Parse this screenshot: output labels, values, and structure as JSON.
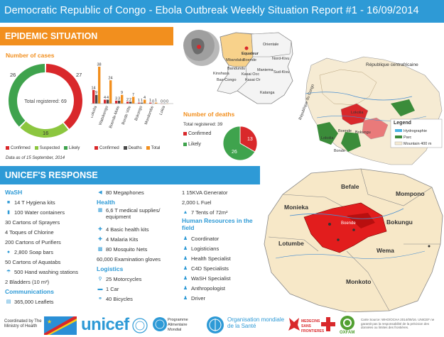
{
  "header": {
    "title": "Democratic Republic of Congo - Ebola Outbreak Weekly Situation Report #1 - 16/09/2014"
  },
  "epi": {
    "band": "EPIDEMIC SITUATION",
    "cases_title": "Number of cases",
    "donut_total": "Total registered: 69",
    "donut_labels": {
      "confirmed": "27",
      "suspected": "16",
      "likely": "26"
    },
    "data_note": "Data as of 15 September, 2014",
    "deaths_title": "Number of deaths",
    "deaths_total": "Total registered: 39",
    "deaths_legend": [
      "Confirmed",
      "Likely"
    ],
    "deaths_labels": {
      "confirmed": "13",
      "likely": "26"
    }
  },
  "chart_data": [
    {
      "type": "pie",
      "title": "Number of cases",
      "categories": [
        "Confirmed",
        "Suspected",
        "Likely"
      ],
      "values": [
        27,
        16,
        26
      ],
      "legend": "bottom",
      "colors": [
        "#d9282b",
        "#8cc63f",
        "#3fa34d"
      ]
    },
    {
      "type": "bar",
      "categories": [
        "Lokolia",
        "Watsikengo",
        "Boende-Mote",
        "Bonde Ville",
        "Bokongo",
        "Mondombe",
        "Lokia"
      ],
      "series": [
        {
          "name": "Confirmed",
          "values": [
            14,
            4,
            3,
            2,
            1,
            1,
            0
          ]
        },
        {
          "name": "Deaths",
          "values": [
            9,
            4,
            3,
            2,
            1,
            0,
            0
          ]
        },
        {
          "name": "Total",
          "values": [
            38,
            24,
            9,
            7,
            4,
            1,
            0
          ]
        },
        {
          "name": "",
          "values": [
            null,
            20,
            null,
            null,
            null,
            null,
            null
          ]
        }
      ],
      "data_labels": [
        "14",
        "9",
        "38",
        "4",
        "24",
        "20",
        "9",
        "3",
        "3",
        "2",
        "7",
        "1",
        "4",
        "1",
        "1",
        "0",
        "0",
        "0",
        "0"
      ],
      "legend": "bottom",
      "colors": [
        "#d9282b",
        "#4a4a4a",
        "#f28f1e"
      ]
    },
    {
      "type": "pie",
      "title": "Number of deaths",
      "categories": [
        "Confirmed",
        "Likely"
      ],
      "values": [
        13,
        26
      ],
      "legend": "left",
      "colors": [
        "#d9282b",
        "#3fa34d"
      ]
    }
  ],
  "bar_legend": [
    "Confirmed",
    "Deaths",
    "Total"
  ],
  "unicef": {
    "band": "UNICEF'S RESPONSE",
    "col1": {
      "wash_title": "WaSH",
      "items": [
        "14 T Hygiena kits",
        "100 Water containers",
        "30 Cartons of Sprayers",
        "4 Toques of Chlorine",
        "200 Cartons of Purifiers",
        "2,800 Soap bars",
        "50 Cartons of Aquatabs",
        "500 Hand washing stations",
        "2 Bladders (10 m³)"
      ],
      "comm_title": "Communications",
      "comm_items": [
        "365,000 Leaflets"
      ]
    },
    "col2": {
      "items_top": [
        "80 Megaphones"
      ],
      "health_title": "Health",
      "health_items": [
        "6,6 T medical supplies/ equipment",
        "4 Basic health kits",
        "4 Malaria Kits",
        "80 Mosquito Nets",
        "60,000 Examination gloves"
      ],
      "log_title": "Logistics",
      "log_items": [
        "25 Motorcycles",
        "1 Car",
        "40 Bicycles"
      ]
    },
    "col3": {
      "items_top": [
        "1 15KVA Generator",
        "2,000 L Fuel",
        "7 Tents of 72m²"
      ],
      "hr_title": "Human Resources in the field",
      "hr_items": [
        "Coordinator",
        "Logisticians",
        "Health Specialist",
        "C4D Specialists",
        "WaSH Specialist",
        "Anthropologist",
        "Driver"
      ]
    }
  },
  "map_top": {
    "provinces": [
      "Equateur",
      "Orientale",
      "Mbandaka",
      "Boende",
      "Nord-Kivu",
      "Maniema",
      "Sud-Kivu",
      "Kinshasa",
      "Bandundu",
      "Bas-Congo",
      "Kasai Occ",
      "Kasai Or",
      "Katanga"
    ],
    "labels": [
      "République centrafricaine",
      "République du Congo",
      "Lokolia",
      "Bokungu",
      "Boende",
      "Lokolia",
      "Bonde"
    ],
    "legend_title": "Legend",
    "legend_items": [
      "Hydrographie",
      "Parc",
      "Mountain 400 m"
    ]
  },
  "map_bottom": {
    "zones": [
      "Befale",
      "Mompono",
      "Monieka",
      "Bokungu",
      "Lotumbe",
      "Wema",
      "Monkoto",
      "Boende"
    ]
  },
  "footer": {
    "coordinated": "Coordinated by The Ministry of Health",
    "unicef": "unicef",
    "oms": "Organisation mondiale de la Santé",
    "msf": "MEDECINS SANS FRONTIERES",
    "oxfam": "OXFAM",
    "wfp": "Programme Alimentaire Mondial",
    "disclaimer": "Carte Source: WHO/OCHA 2014/09/16. UNICEF ne garantit pas la responsabilité de la précision des données ou limites des frontières."
  }
}
